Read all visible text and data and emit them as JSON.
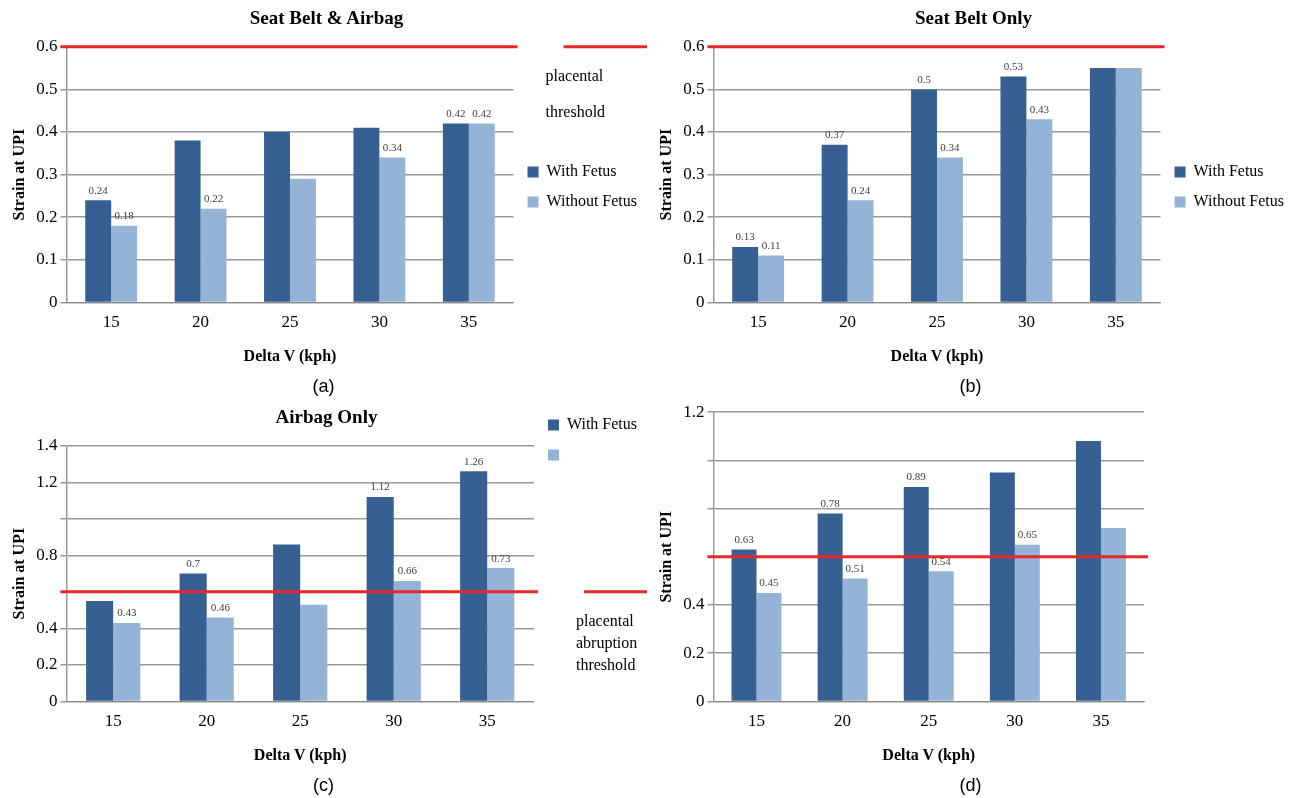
{
  "chart_data": [
    {
      "type": "bar",
      "title": "Seat Belt & Airbag",
      "xlabel": "Delta V (kph)",
      "ylabel": "Strain at UPI",
      "categories": [
        "15",
        "20",
        "25",
        "30",
        "35"
      ],
      "series": [
        {
          "name": "With Fetus",
          "color": "#366092",
          "values": [
            0.24,
            0.38,
            0.4,
            0.41,
            0.42
          ],
          "value_labels": [
            "0.24",
            null,
            null,
            null,
            "0.42"
          ]
        },
        {
          "name": "Without Fetus",
          "color": "#95b3d7",
          "values": [
            0.18,
            0.22,
            0.29,
            0.34,
            0.42
          ],
          "value_labels": [
            "0.18",
            "0.22",
            null,
            "0.34",
            "0.42"
          ]
        }
      ],
      "ylim": [
        0,
        0.6
      ],
      "yticks": [
        0,
        0.1,
        0.2,
        0.3,
        0.4,
        0.5,
        0.6
      ],
      "grid": "y",
      "legend": "right",
      "ref_lines": [
        {
          "axis": "y",
          "value": 0.6,
          "label": "placental threshold",
          "color": "#e8262b"
        }
      ],
      "annotations": [
        "(a)"
      ]
    },
    {
      "type": "bar",
      "title": "Seat Belt Only",
      "xlabel": "Delta V (kph)",
      "ylabel": "Strain at UPI",
      "categories": [
        "15",
        "20",
        "25",
        "30",
        "35"
      ],
      "series": [
        {
          "name": "With Fetus",
          "color": "#366092",
          "values": [
            0.13,
            0.37,
            0.5,
            0.53,
            0.55
          ],
          "value_labels": [
            "0.13",
            "0.37",
            "0.5",
            "0.53",
            null
          ]
        },
        {
          "name": "Without Fetus",
          "color": "#95b3d7",
          "values": [
            0.11,
            0.24,
            0.34,
            0.43,
            0.55
          ],
          "value_labels": [
            "0.11",
            "0.24",
            "0.34",
            "0.43",
            null
          ]
        }
      ],
      "ylim": [
        0,
        0.6
      ],
      "yticks": [
        0,
        0.1,
        0.2,
        0.3,
        0.4,
        0.5,
        0.6
      ],
      "grid": "y",
      "legend": "right",
      "ref_lines": [
        {
          "axis": "y",
          "value": 0.6,
          "color": "#e8262b"
        }
      ],
      "annotations": [
        "(b)"
      ]
    },
    {
      "type": "bar",
      "title": "Airbag Only",
      "xlabel": "Delta V (kph)",
      "ylabel": "Strain at UPI",
      "categories": [
        "15",
        "20",
        "25",
        "30",
        "35"
      ],
      "series": [
        {
          "name": "With Fetus",
          "color": "#366092",
          "values": [
            0.55,
            0.7,
            0.86,
            1.12,
            1.26
          ],
          "value_labels": [
            null,
            "0.7",
            null,
            "1.12",
            "1.26"
          ]
        },
        {
          "color": "#95b3d7",
          "values": [
            0.43,
            0.46,
            0.53,
            0.66,
            0.73
          ],
          "value_labels": [
            "0.43",
            "0.46",
            null,
            "0.66",
            "0.73"
          ]
        }
      ],
      "ylim": [
        0,
        1.4
      ],
      "yticks": [
        0,
        0.2,
        0.4,
        {
          "value": 0.6,
          "label": null
        },
        0.8,
        {
          "value": 1.0,
          "label": null
        },
        1.2,
        1.4
      ],
      "grid": "y",
      "legend": "top right",
      "ref_lines": [
        {
          "axis": "y",
          "value": 0.6,
          "label": "placental abruption threshold",
          "color": "#e8262b"
        }
      ],
      "annotations": [
        "(c)"
      ]
    },
    {
      "type": "bar",
      "xlabel": "Delta V (kph)",
      "ylabel": "Strain at UPI",
      "categories": [
        "15",
        "20",
        "25",
        "30",
        "35"
      ],
      "series": [
        {
          "color": "#366092",
          "values": [
            0.63,
            0.78,
            0.89,
            0.95,
            1.08
          ],
          "value_labels": [
            "0.63",
            "0.78",
            "0.89",
            null,
            null
          ]
        },
        {
          "color": "#95b3d7",
          "values": [
            0.45,
            0.51,
            0.54,
            0.65,
            0.72
          ],
          "value_labels": [
            "0.45",
            "0.51",
            "0.54",
            "0.65",
            null
          ]
        }
      ],
      "ylim": [
        0,
        1.2
      ],
      "yticks": [
        0,
        0.2,
        0.4,
        {
          "value": 0.6,
          "label": null
        },
        {
          "value": 0.8,
          "label": null
        },
        {
          "value": 1.0,
          "label": null
        },
        1.2
      ],
      "grid": "y",
      "ref_lines": [
        {
          "axis": "y",
          "value": 0.6,
          "color": "#e8262b"
        }
      ],
      "annotations": [
        "(d)"
      ]
    }
  ]
}
